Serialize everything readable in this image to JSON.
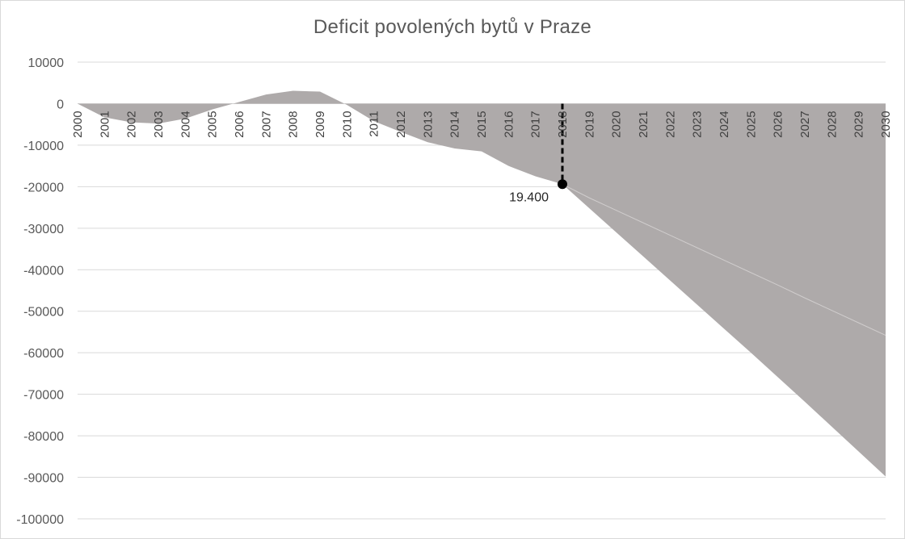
{
  "chart_data": {
    "type": "area",
    "title": "Deficit povolených bytů v Praze",
    "xlabel": "",
    "ylabel": "",
    "x": [
      "2000",
      "2001",
      "2002",
      "2003",
      "2004",
      "2005",
      "2006",
      "2007",
      "2008",
      "2009",
      "2010",
      "2011",
      "2012",
      "2013",
      "2014",
      "2015",
      "2016",
      "2017",
      "2018",
      "2019",
      "2020",
      "2021",
      "2022",
      "2023",
      "2024",
      "2025",
      "2026",
      "2027",
      "2028",
      "2029",
      "2030"
    ],
    "ylim": [
      -100000,
      10000
    ],
    "yticks": [
      10000,
      0,
      -10000,
      -20000,
      -30000,
      -40000,
      -50000,
      -60000,
      -70000,
      -80000,
      -90000,
      -100000
    ],
    "grid": true,
    "series": [
      {
        "values": [
          0,
          -3300,
          -4500,
          -4800,
          -3600,
          -1400,
          400,
          2200,
          3100,
          2900,
          -300,
          -4200,
          -6800,
          -9300,
          -10800,
          -11500,
          -15000,
          -17500,
          -19400,
          -22600,
          -25800,
          -29000,
          -32200,
          -35400,
          -38600,
          -41800,
          -45000,
          -48200,
          -51400,
          -54600,
          -57800
        ],
        "color": "#aeaaaa"
      },
      {
        "values": [
          null,
          null,
          null,
          null,
          null,
          null,
          null,
          null,
          null,
          null,
          null,
          null,
          null,
          null,
          null,
          null,
          null,
          null,
          -19400,
          -22700,
          -25700,
          -28700,
          -31700,
          -34700,
          -37700,
          -40700,
          -43700,
          -46800,
          -49800,
          -52800,
          -55800
        ],
        "color": "#aeaaaa"
      },
      {
        "values": [
          null,
          null,
          null,
          null,
          null,
          null,
          null,
          null,
          null,
          null,
          null,
          null,
          null,
          null,
          null,
          null,
          null,
          null,
          -19400,
          -25200,
          -31000,
          -36800,
          -42600,
          -48400,
          -54200,
          -60000,
          -65900,
          -71800,
          -77800,
          -83800,
          -89800
        ],
        "color": "#aeaaaa"
      }
    ],
    "annotations": [
      {
        "x": "2018",
        "y": -19400,
        "label": "19.400"
      }
    ],
    "colors": {
      "area": "#aeaaaa",
      "grid": "#d9d9d9",
      "marker": "#000000",
      "divider_line": "#d0cdcd"
    }
  }
}
